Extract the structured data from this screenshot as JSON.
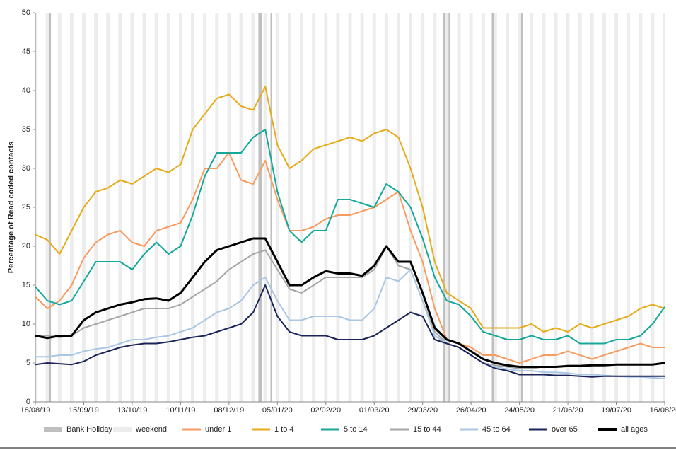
{
  "chart_data": {
    "type": "line",
    "y_label": "Percentage of Read coded contacts",
    "x": [
      "2019-08-18",
      "2019-08-25",
      "2019-09-01",
      "2019-09-08",
      "2019-09-15",
      "2019-09-22",
      "2019-09-29",
      "2019-10-06",
      "2019-10-13",
      "2019-10-20",
      "2019-10-27",
      "2019-11-03",
      "2019-11-10",
      "2019-11-17",
      "2019-11-24",
      "2019-12-01",
      "2019-12-08",
      "2019-12-15",
      "2019-12-22",
      "2019-12-29",
      "2020-01-05",
      "2020-01-12",
      "2020-01-19",
      "2020-01-26",
      "2020-02-02",
      "2020-02-09",
      "2020-02-16",
      "2020-02-23",
      "2020-03-01",
      "2020-03-08",
      "2020-03-15",
      "2020-03-22",
      "2020-03-29",
      "2020-04-05",
      "2020-04-12",
      "2020-04-19",
      "2020-04-26",
      "2020-05-03",
      "2020-05-10",
      "2020-05-17",
      "2020-05-24",
      "2020-05-31",
      "2020-06-07",
      "2020-06-14",
      "2020-06-21",
      "2020-06-28",
      "2020-07-05",
      "2020-07-12",
      "2020-07-19",
      "2020-07-26",
      "2020-08-02",
      "2020-08-09",
      "2020-08-16"
    ],
    "bands": [
      {
        "name": "Bank Holiday",
        "color": "#bfbfbf",
        "dates": [
          "2019-08-26",
          "2019-12-25",
          "2019-12-26",
          "2020-01-01",
          "2020-04-10",
          "2020-04-13",
          "2020-05-08",
          "2020-05-25"
        ]
      },
      {
        "name": "weekend",
        "color": "#ececec"
      }
    ],
    "series": [
      {
        "name": "under 1",
        "color": "#f79b5e",
        "width": 2,
        "values": [
          13.5,
          12,
          13,
          15,
          18.5,
          20.5,
          21.5,
          22,
          20.5,
          20,
          22,
          22.5,
          23,
          26,
          30,
          30,
          32,
          28.5,
          28,
          31,
          26,
          22,
          22,
          22.5,
          23.5,
          24,
          24,
          24.5,
          25,
          26,
          27,
          22,
          18,
          12,
          8,
          7.5,
          7,
          6,
          6,
          5.5,
          5,
          5.5,
          6,
          6,
          6.5,
          6,
          5.5,
          6,
          6.5,
          7,
          7.5,
          7,
          7
        ]
      },
      {
        "name": "1 to 4",
        "color": "#e6ab1a",
        "width": 2,
        "values": [
          21.5,
          20.8,
          19,
          22,
          25,
          27,
          27.5,
          28.5,
          28,
          29,
          30,
          29.5,
          30.5,
          35,
          37,
          39,
          39.5,
          38,
          37.5,
          40.5,
          33,
          30,
          31,
          32.5,
          33,
          33.5,
          34,
          33.5,
          34.5,
          35,
          34,
          30,
          25,
          18,
          14,
          13,
          12,
          9.5,
          9.5,
          9.5,
          9.5,
          10,
          9,
          9.5,
          9,
          10,
          9.5,
          10,
          10.5,
          11,
          12,
          12.5,
          12
        ]
      },
      {
        "name": "5 to 14",
        "color": "#14a89a",
        "width": 2,
        "values": [
          14.8,
          13,
          12.5,
          13,
          15.5,
          18,
          18,
          18,
          17,
          19,
          20.5,
          19,
          20,
          24,
          29,
          32,
          32,
          32,
          34,
          35,
          27,
          22,
          20.5,
          22,
          22,
          26,
          26,
          25.5,
          25,
          28,
          27,
          25,
          21,
          16,
          13,
          12.5,
          11,
          9,
          8.5,
          8,
          8,
          8.5,
          8,
          8,
          8.5,
          7.5,
          7.5,
          7.5,
          8,
          8,
          8.5,
          10,
          12.2
        ]
      },
      {
        "name": "15 to 44",
        "color": "#a6a6a6",
        "width": 2,
        "values": [
          8.5,
          8.5,
          8.3,
          8.5,
          9.5,
          10,
          10.5,
          11,
          11.5,
          12,
          12,
          12,
          12.5,
          13.5,
          14.5,
          15.5,
          17,
          18,
          19,
          19.5,
          17,
          14.5,
          14,
          15,
          16,
          16,
          16,
          16,
          17,
          20,
          17.5,
          17,
          13,
          9,
          7.5,
          7,
          6,
          5,
          4.7,
          4.5,
          4.3,
          4.3,
          4.5,
          4.5,
          4.7,
          4.7,
          4.8,
          4.8,
          4.8,
          4.8,
          4.8,
          4.8,
          5
        ]
      },
      {
        "name": "45 to 64",
        "color": "#a9c6e3",
        "width": 2,
        "values": [
          5.8,
          5.8,
          6,
          6,
          6.5,
          6.8,
          7,
          7.5,
          8,
          8,
          8.3,
          8.5,
          9,
          9.5,
          10.5,
          11.5,
          12,
          13,
          15,
          16,
          13,
          10.5,
          10.5,
          11,
          11,
          11,
          10.5,
          10.5,
          12,
          16,
          15.5,
          17,
          13,
          8.5,
          7.5,
          7,
          6,
          5,
          4.5,
          4.2,
          4,
          4,
          3.8,
          3.8,
          3.7,
          3.5,
          3.5,
          3.4,
          3.3,
          3.2,
          3.2,
          3.1,
          3
        ]
      },
      {
        "name": "over 65",
        "color": "#1b2458",
        "width": 2,
        "values": [
          4.8,
          5,
          4.9,
          4.8,
          5.2,
          6,
          6.5,
          7,
          7.3,
          7.5,
          7.5,
          7.7,
          8,
          8.3,
          8.5,
          9,
          9.5,
          10,
          11.5,
          15,
          11,
          9,
          8.5,
          8.5,
          8.5,
          8,
          8,
          8,
          8.5,
          9.5,
          10.5,
          11.5,
          11,
          8,
          7.5,
          7,
          6,
          5,
          4.3,
          4,
          3.5,
          3.5,
          3.5,
          3.4,
          3.4,
          3.3,
          3.2,
          3.3,
          3.3,
          3.3,
          3.3,
          3.3,
          3.3
        ]
      },
      {
        "name": "all ages",
        "color": "#000000",
        "width": 3,
        "values": [
          8.5,
          8.2,
          8.5,
          8.5,
          10.5,
          11.5,
          12,
          12.5,
          12.8,
          13.2,
          13.3,
          13,
          14,
          16,
          18,
          19.5,
          20,
          20.5,
          21,
          21,
          18,
          15,
          15,
          16,
          16.8,
          16.5,
          16.5,
          16.2,
          17.5,
          20,
          18,
          18,
          14,
          9.5,
          8,
          7.5,
          6.5,
          5.5,
          5,
          4.7,
          4.5,
          4.5,
          4.5,
          4.5,
          4.6,
          4.6,
          4.7,
          4.7,
          4.8,
          4.8,
          4.8,
          4.8,
          5
        ]
      }
    ],
    "xlim": [
      "2019-08-18",
      "2020-08-16"
    ],
    "xticks": [
      {
        "value": "2019-08-18",
        "label": "18/08/19"
      },
      {
        "value": "2019-09-15",
        "label": "15/09/19"
      },
      {
        "value": "2019-10-13",
        "label": "13/10/19"
      },
      {
        "value": "2019-11-10",
        "label": "10/11/19"
      },
      {
        "value": "2019-12-08",
        "label": "08/12/19"
      },
      {
        "value": "2020-01-05",
        "label": "05/01/20"
      },
      {
        "value": "2020-02-02",
        "label": "02/02/20"
      },
      {
        "value": "2020-03-01",
        "label": "01/03/20"
      },
      {
        "value": "2020-03-29",
        "label": "29/03/20"
      },
      {
        "value": "2020-04-26",
        "label": "26/04/20"
      },
      {
        "value": "2020-05-24",
        "label": "24/05/20"
      },
      {
        "value": "2020-06-21",
        "label": "21/06/20"
      },
      {
        "value": "2020-07-19",
        "label": "19/07/20"
      },
      {
        "value": "2020-08-16",
        "label": "16/08/20"
      }
    ],
    "ylim": [
      0,
      50
    ],
    "yticks": [
      0,
      5,
      10,
      15,
      20,
      25,
      30,
      35,
      40,
      45,
      50
    ]
  }
}
